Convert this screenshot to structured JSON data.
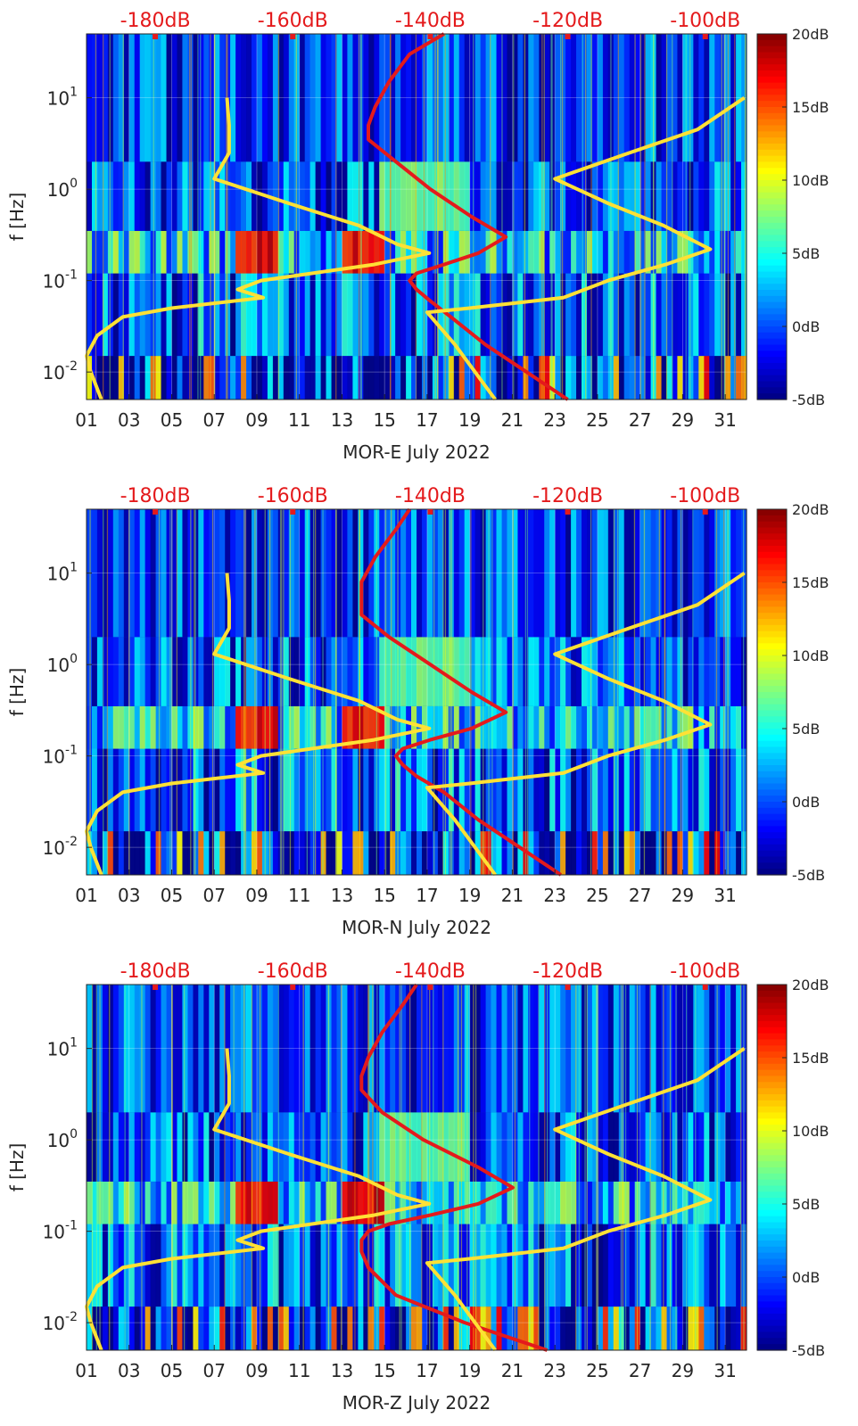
{
  "chart_data": [
    {
      "type": "heatmap",
      "title": "MOR-E July 2022",
      "xlabel": "MOR-E July 2022",
      "ylabel": "f [Hz]",
      "x_ticks": [
        "01",
        "03",
        "05",
        "07",
        "09",
        "11",
        "13",
        "15",
        "17",
        "19",
        "21",
        "23",
        "25",
        "27",
        "29",
        "31"
      ],
      "xlim": [
        1,
        32
      ],
      "ylim": [
        0.005,
        50
      ],
      "yscale": "log",
      "y_ticks": [
        {
          "base": "10",
          "exp": "-2"
        },
        {
          "base": "10",
          "exp": "-1"
        },
        {
          "base": "10",
          "exp": "0"
        },
        {
          "base": "10",
          "exp": "1"
        }
      ],
      "top_axis_labels": [
        "-180dB",
        "-160dB",
        "-140dB",
        "-120dB",
        "-100dB"
      ],
      "top_axis_range": [
        -190,
        -94
      ],
      "colorbar": {
        "labels": [
          "20dB",
          "15dB",
          "10dB",
          "5dB",
          "0dB",
          "-5dB"
        ],
        "range": [
          -5,
          20
        ]
      },
      "series": [
        {
          "name": "red PSD curve",
          "color": "#e41a1c",
          "freq": [
            50,
            30,
            15,
            8,
            5,
            3.5,
            2,
            1,
            0.5,
            0.3,
            0.2,
            0.15,
            0.12,
            0.1,
            0.08,
            0.06,
            0.04,
            0.02,
            0.01,
            0.005
          ],
          "db": [
            -138,
            -143,
            -146,
            -148,
            -149,
            -149,
            -145,
            -140,
            -134,
            -129,
            -133,
            -138,
            -142,
            -143,
            -142,
            -140,
            -137,
            -132,
            -126,
            -120
          ]
        },
        {
          "name": "yellow noise model left",
          "color": "#ffe135",
          "freq": [
            10,
            5,
            2.5,
            1.3,
            0.7,
            0.4,
            0.25,
            0.2,
            0.15,
            0.1,
            0.08,
            0.065,
            0.05,
            0.04,
            0.025,
            0.015,
            0.01,
            0.005
          ],
          "day": [
            7.6,
            7.7,
            7.7,
            7.0,
            10.5,
            13.8,
            15.6,
            17.1,
            14.5,
            9.2,
            8.1,
            9.3,
            5,
            2.7,
            1.5,
            1.0,
            1.2,
            1.7
          ]
        },
        {
          "name": "yellow noise model right",
          "color": "#ffe135",
          "freq": [
            10,
            4.5,
            2.5,
            1.3,
            0.7,
            0.4,
            0.22,
            0.15,
            0.1,
            0.065,
            0.05,
            0.045,
            0.02,
            0.005
          ],
          "day": [
            31.9,
            29.7,
            26.5,
            23,
            25.5,
            28.1,
            30.3,
            28.2,
            25.5,
            23.4,
            19,
            17,
            18.3,
            20.2
          ]
        }
      ]
    },
    {
      "type": "heatmap",
      "title": "MOR-N July 2022",
      "xlabel": "MOR-N July 2022",
      "ylabel": "f [Hz]",
      "x_ticks": [
        "01",
        "03",
        "05",
        "07",
        "09",
        "11",
        "13",
        "15",
        "17",
        "19",
        "21",
        "23",
        "25",
        "27",
        "29",
        "31"
      ],
      "xlim": [
        1,
        32
      ],
      "ylim": [
        0.005,
        50
      ],
      "yscale": "log",
      "y_ticks": [
        {
          "base": "10",
          "exp": "-2"
        },
        {
          "base": "10",
          "exp": "-1"
        },
        {
          "base": "10",
          "exp": "0"
        },
        {
          "base": "10",
          "exp": "1"
        }
      ],
      "top_axis_labels": [
        "-180dB",
        "-160dB",
        "-140dB",
        "-120dB",
        "-100dB"
      ],
      "top_axis_range": [
        -190,
        -94
      ],
      "colorbar": {
        "labels": [
          "20dB",
          "15dB",
          "10dB",
          "5dB",
          "0dB",
          "-5dB"
        ],
        "range": [
          -5,
          20
        ]
      },
      "series": [
        {
          "name": "red PSD curve",
          "color": "#e41a1c",
          "freq": [
            50,
            30,
            15,
            8,
            5,
            3.5,
            2,
            1,
            0.5,
            0.3,
            0.2,
            0.15,
            0.12,
            0.1,
            0.08,
            0.06,
            0.04,
            0.02,
            0.01,
            0.005
          ],
          "db": [
            -143,
            -145,
            -148,
            -150,
            -150,
            -150,
            -146,
            -140,
            -134,
            -129,
            -134,
            -140,
            -144,
            -145,
            -144,
            -142,
            -138,
            -133,
            -127,
            -121
          ]
        },
        {
          "name": "yellow noise model left",
          "color": "#ffe135",
          "freq": [
            10,
            5,
            2.5,
            1.3,
            0.7,
            0.4,
            0.25,
            0.2,
            0.15,
            0.1,
            0.08,
            0.065,
            0.05,
            0.04,
            0.025,
            0.015,
            0.01,
            0.005
          ],
          "day": [
            7.6,
            7.7,
            7.7,
            7.0,
            10.5,
            13.8,
            15.6,
            17.1,
            14.5,
            9.2,
            8.1,
            9.3,
            5,
            2.7,
            1.5,
            1.0,
            1.2,
            1.7
          ]
        },
        {
          "name": "yellow noise model right",
          "color": "#ffe135",
          "freq": [
            10,
            4.5,
            2.5,
            1.3,
            0.7,
            0.4,
            0.22,
            0.15,
            0.1,
            0.065,
            0.05,
            0.045,
            0.02,
            0.005
          ],
          "day": [
            31.9,
            29.7,
            26.5,
            23,
            25.5,
            28.1,
            30.3,
            28.2,
            25.5,
            23.4,
            19,
            17,
            18.3,
            20.2
          ]
        }
      ]
    },
    {
      "type": "heatmap",
      "title": "MOR-Z July 2022",
      "xlabel": "MOR-Z July 2022",
      "ylabel": "f [Hz]",
      "x_ticks": [
        "01",
        "03",
        "05",
        "07",
        "09",
        "11",
        "13",
        "15",
        "17",
        "19",
        "21",
        "23",
        "25",
        "27",
        "29",
        "31"
      ],
      "xlim": [
        1,
        32
      ],
      "ylim": [
        0.005,
        50
      ],
      "yscale": "log",
      "y_ticks": [
        {
          "base": "10",
          "exp": "-2"
        },
        {
          "base": "10",
          "exp": "-1"
        },
        {
          "base": "10",
          "exp": "0"
        },
        {
          "base": "10",
          "exp": "1"
        }
      ],
      "top_axis_labels": [
        "-180dB",
        "-160dB",
        "-140dB",
        "-120dB",
        "-100dB"
      ],
      "top_axis_range": [
        -190,
        -94
      ],
      "colorbar": {
        "labels": [
          "20dB",
          "15dB",
          "10dB",
          "5dB",
          "0dB",
          "-5dB"
        ],
        "range": [
          -5,
          20
        ]
      },
      "series": [
        {
          "name": "red PSD curve",
          "color": "#e41a1c",
          "freq": [
            50,
            30,
            15,
            8,
            5,
            3.5,
            2,
            1,
            0.5,
            0.3,
            0.2,
            0.15,
            0.12,
            0.1,
            0.08,
            0.06,
            0.04,
            0.02,
            0.01,
            0.005
          ],
          "db": [
            -142,
            -144,
            -147,
            -149,
            -150,
            -150,
            -147,
            -141,
            -133,
            -128,
            -133,
            -140,
            -146,
            -149,
            -150,
            -150,
            -149,
            -145,
            -135,
            -123
          ]
        },
        {
          "name": "yellow noise model left",
          "color": "#ffe135",
          "freq": [
            10,
            5,
            2.5,
            1.3,
            0.7,
            0.4,
            0.25,
            0.2,
            0.15,
            0.1,
            0.08,
            0.065,
            0.05,
            0.04,
            0.025,
            0.015,
            0.01,
            0.005
          ],
          "day": [
            7.6,
            7.7,
            7.7,
            7.0,
            10.5,
            13.8,
            15.6,
            17.1,
            14.5,
            9.2,
            8.1,
            9.3,
            5,
            2.7,
            1.5,
            1.0,
            1.2,
            1.7
          ]
        },
        {
          "name": "yellow noise model right",
          "color": "#ffe135",
          "freq": [
            10,
            4.5,
            2.5,
            1.3,
            0.7,
            0.4,
            0.22,
            0.15,
            0.1,
            0.065,
            0.05,
            0.045,
            0.02,
            0.005
          ],
          "day": [
            31.9,
            29.7,
            26.5,
            23,
            25.5,
            28.1,
            30.3,
            28.2,
            25.5,
            23.4,
            19,
            17,
            18.3,
            20.2
          ]
        }
      ]
    }
  ]
}
